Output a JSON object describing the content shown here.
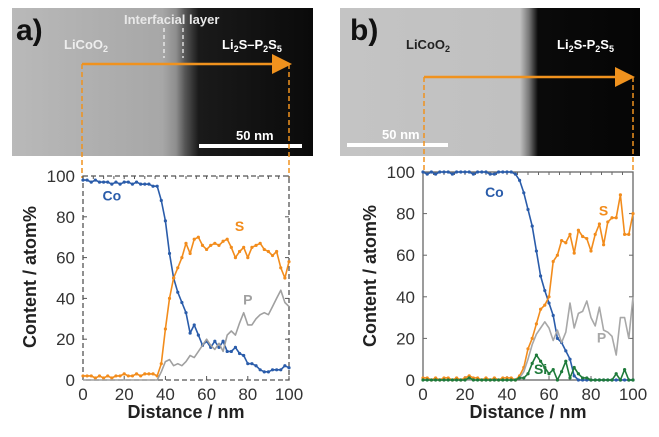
{
  "figure": {
    "panels": [
      {
        "letter": "a)",
        "image": {
          "left_label": "LiCoO",
          "left_label_sub": "2",
          "interfacial_label": "Interfacial layer",
          "right_label_parts": [
            "Li",
            "2",
            "S–P",
            "2",
            "S",
            "5"
          ],
          "scale_bar_label": "50 nm",
          "arrow_color": "#f0921e"
        }
      },
      {
        "letter": "b)",
        "image": {
          "left_label": "LiCoO",
          "left_label_sub": "2",
          "right_label_parts": [
            "Li",
            "2",
            "S-P",
            "2",
            "S",
            "5"
          ],
          "scale_bar_label": "50 nm",
          "arrow_color": "#f0921e"
        }
      }
    ]
  },
  "chart_data": [
    {
      "type": "line",
      "title": "a)",
      "xlabel": "Distance / nm",
      "ylabel": "Content / atom%",
      "xlim": [
        0,
        100
      ],
      "ylim": [
        0,
        100
      ],
      "xticks": [
        "0",
        "20",
        "40",
        "60",
        "80",
        "100"
      ],
      "yticks": [
        "0",
        "20",
        "40",
        "60",
        "80",
        "100"
      ],
      "frame": "dashed",
      "x": [
        0,
        2,
        4,
        6,
        8,
        10,
        12,
        14,
        16,
        18,
        20,
        22,
        24,
        26,
        28,
        30,
        32,
        34,
        36,
        38,
        40,
        42,
        44,
        46,
        48,
        50,
        52,
        54,
        56,
        58,
        60,
        62,
        64,
        66,
        68,
        70,
        72,
        74,
        76,
        78,
        80,
        82,
        84,
        86,
        88,
        90,
        92,
        94,
        96,
        98,
        100
      ],
      "series": [
        {
          "name": "Co",
          "color": "#2a5caa",
          "label_at": [
            14,
            88
          ],
          "values": [
            98,
            98,
            97,
            98,
            97,
            97,
            97,
            96,
            97,
            96,
            97,
            97,
            96,
            97,
            96,
            96,
            96,
            95,
            95,
            88,
            78,
            62,
            50,
            43,
            38,
            33,
            23,
            27,
            22,
            17,
            19,
            16,
            19,
            16,
            19,
            14,
            14,
            16,
            13,
            12,
            8,
            8,
            7,
            5,
            4,
            4,
            5,
            5,
            5,
            7,
            6
          ]
        },
        {
          "name": "S",
          "color": "#f28c1c",
          "label_at": [
            76,
            73
          ],
          "values": [
            2,
            2,
            2,
            1,
            2,
            1,
            2,
            1,
            2,
            2,
            3,
            2,
            2,
            3,
            2,
            3,
            3,
            3,
            2,
            8,
            25,
            40,
            50,
            55,
            60,
            67,
            62,
            69,
            70,
            66,
            64,
            66,
            67,
            66,
            68,
            69,
            65,
            60,
            63,
            65,
            60,
            65,
            66,
            67,
            64,
            63,
            61,
            63,
            55,
            50,
            58
          ]
        },
        {
          "name": "P",
          "color": "#a0a0a0",
          "label_at": [
            80,
            37
          ],
          "values": [
            0,
            0,
            0,
            0,
            0,
            0,
            0,
            0,
            0,
            0,
            0,
            0,
            0,
            0,
            0,
            0,
            0,
            0,
            0,
            4,
            9,
            10,
            7,
            8,
            7,
            9,
            12,
            11,
            14,
            17,
            20,
            17,
            15,
            18,
            14,
            22,
            24,
            22,
            28,
            33,
            27,
            27,
            30,
            32,
            33,
            32,
            36,
            40,
            44,
            38,
            36
          ]
        }
      ]
    },
    {
      "type": "line",
      "title": "b)",
      "xlabel": "Distance / nm",
      "ylabel": "Content / atom%",
      "xlim": [
        0,
        100
      ],
      "ylim": [
        0,
        100
      ],
      "xticks": [
        "0",
        "20",
        "40",
        "60",
        "80",
        "100"
      ],
      "yticks": [
        "0",
        "20",
        "40",
        "60",
        "80",
        "100"
      ],
      "frame": "solid",
      "x": [
        0,
        2,
        4,
        6,
        8,
        10,
        12,
        14,
        16,
        18,
        20,
        22,
        24,
        26,
        28,
        30,
        32,
        34,
        36,
        38,
        40,
        42,
        44,
        46,
        48,
        50,
        52,
        54,
        56,
        58,
        60,
        62,
        64,
        66,
        68,
        70,
        72,
        74,
        76,
        78,
        80,
        82,
        84,
        86,
        88,
        90,
        92,
        94,
        96,
        98,
        100
      ],
      "series": [
        {
          "name": "Co",
          "color": "#2a5caa",
          "label_at": [
            34,
            88
          ],
          "values": [
            100,
            99,
            100,
            99,
            100,
            100,
            100,
            99,
            100,
            100,
            100,
            100,
            99,
            100,
            100,
            100,
            99,
            99,
            100,
            100,
            100,
            100,
            99,
            96,
            90,
            82,
            74,
            62,
            50,
            43,
            37,
            31,
            20,
            18,
            14,
            10,
            2,
            0,
            0,
            0,
            0,
            0,
            0,
            0,
            0,
            0,
            0,
            0,
            0,
            0,
            0
          ]
        },
        {
          "name": "S",
          "color": "#f28c1c",
          "label_at": [
            86,
            79
          ],
          "values": [
            1,
            1,
            0,
            1,
            0,
            1,
            1,
            0,
            1,
            0,
            1,
            2,
            1,
            1,
            0,
            1,
            0,
            1,
            0,
            1,
            1,
            1,
            0,
            2,
            6,
            15,
            20,
            27,
            34,
            36,
            40,
            57,
            60,
            67,
            66,
            70,
            61,
            72,
            69,
            68,
            62,
            70,
            75,
            65,
            76,
            78,
            78,
            89,
            70,
            70,
            80
          ]
        },
        {
          "name": "P",
          "color": "#a8a8a8",
          "label_at": [
            85,
            18
          ],
          "values": [
            0,
            0,
            0,
            0,
            0,
            0,
            0,
            0,
            0,
            0,
            0,
            0,
            0,
            0,
            0,
            0,
            0,
            0,
            0,
            0,
            0,
            0,
            0,
            1,
            4,
            10,
            17,
            22,
            25,
            28,
            25,
            19,
            24,
            18,
            23,
            37,
            25,
            32,
            33,
            38,
            30,
            26,
            35,
            24,
            23,
            21,
            12,
            30,
            30,
            20,
            40
          ]
        },
        {
          "name": "Si",
          "color": "#1e7a3a",
          "label_at": [
            56,
            3
          ],
          "values": [
            0,
            0,
            0,
            0,
            0,
            0,
            0,
            0,
            0,
            0,
            0,
            1,
            0,
            0,
            0,
            0,
            0,
            0,
            0,
            0,
            0,
            0,
            0,
            1,
            1,
            3,
            8,
            12,
            9,
            6,
            3,
            5,
            0,
            4,
            9,
            1,
            6,
            3,
            1,
            1,
            0,
            0,
            0,
            0,
            0,
            0,
            3,
            0,
            5,
            0,
            0
          ]
        }
      ]
    }
  ]
}
